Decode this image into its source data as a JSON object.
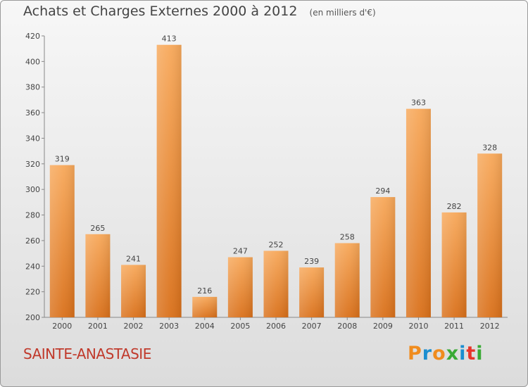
{
  "title": "Achats et Charges Externes 2000 à 2012",
  "subtitle": "(en milliers d'€)",
  "commune": "SAINTE-ANASTASIE",
  "logo": {
    "text": "Proxiti",
    "colors": [
      "#f08c1e",
      "#1b8ed0",
      "#f08c1e",
      "#3aaa35",
      "#1b8ed0",
      "#e8352b",
      "#3aaa35"
    ]
  },
  "colors": {
    "bar_light": "#f7a85a",
    "bar_dark": "#d9701a",
    "commune": "#c0392b",
    "text": "#444444"
  },
  "chart_data": {
    "type": "bar",
    "categories": [
      "2000",
      "2001",
      "2002",
      "2003",
      "2004",
      "2005",
      "2006",
      "2007",
      "2008",
      "2009",
      "2010",
      "2011",
      "2012"
    ],
    "values": [
      319,
      265,
      241,
      413,
      216,
      247,
      252,
      239,
      258,
      294,
      363,
      282,
      328
    ],
    "ylim": [
      200,
      420
    ],
    "yticks": [
      200,
      220,
      240,
      260,
      280,
      300,
      320,
      340,
      360,
      380,
      400,
      420
    ],
    "grid": false
  }
}
